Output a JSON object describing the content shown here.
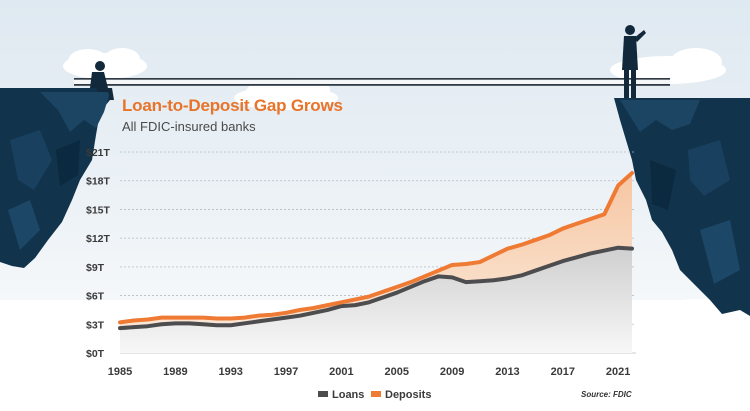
{
  "chart_data": {
    "type": "area",
    "title": "Loan-to-Deposit Gap Grows",
    "subtitle": "All FDIC-insured banks",
    "source": "Source: FDIC",
    "y_ticks": [
      "$0T",
      "$3T",
      "$6T",
      "$9T",
      "$12T",
      "$15T",
      "$18T",
      "$21T"
    ],
    "x_ticks": [
      "1985",
      "1989",
      "1993",
      "1997",
      "2001",
      "2005",
      "2009",
      "2013",
      "2017",
      "2021"
    ],
    "ylim": [
      0,
      21
    ],
    "xlim": [
      1985,
      2022
    ],
    "grid": true,
    "legend_position": "bottom-center",
    "x": [
      1985,
      1986,
      1987,
      1988,
      1989,
      1990,
      1991,
      1992,
      1993,
      1994,
      1995,
      1996,
      1997,
      1998,
      1999,
      2000,
      2001,
      2002,
      2003,
      2004,
      2005,
      2006,
      2007,
      2008,
      2009,
      2010,
      2011,
      2012,
      2013,
      2014,
      2015,
      2016,
      2017,
      2018,
      2019,
      2020,
      2021,
      2022
    ],
    "series": [
      {
        "name": "Loans",
        "color": "#4d4d4f",
        "values": [
          2.6,
          2.7,
          2.8,
          3.0,
          3.1,
          3.1,
          3.0,
          2.9,
          2.9,
          3.1,
          3.3,
          3.5,
          3.7,
          3.9,
          4.2,
          4.5,
          4.9,
          5.0,
          5.3,
          5.8,
          6.3,
          6.9,
          7.5,
          8.0,
          7.9,
          7.4,
          7.5,
          7.6,
          7.8,
          8.1,
          8.6,
          9.1,
          9.6,
          10.0,
          10.4,
          10.7,
          11.0,
          10.9
        ]
      },
      {
        "name": "Deposits",
        "color": "#ee7a33",
        "values": [
          3.2,
          3.4,
          3.5,
          3.7,
          3.7,
          3.7,
          3.7,
          3.6,
          3.6,
          3.7,
          3.9,
          4.0,
          4.2,
          4.5,
          4.7,
          5.0,
          5.3,
          5.6,
          5.9,
          6.4,
          6.9,
          7.4,
          8.0,
          8.6,
          9.2,
          9.3,
          9.5,
          10.2,
          10.9,
          11.3,
          11.8,
          12.3,
          13.0,
          13.5,
          14.0,
          14.5,
          17.5,
          18.8
        ]
      }
    ]
  }
}
